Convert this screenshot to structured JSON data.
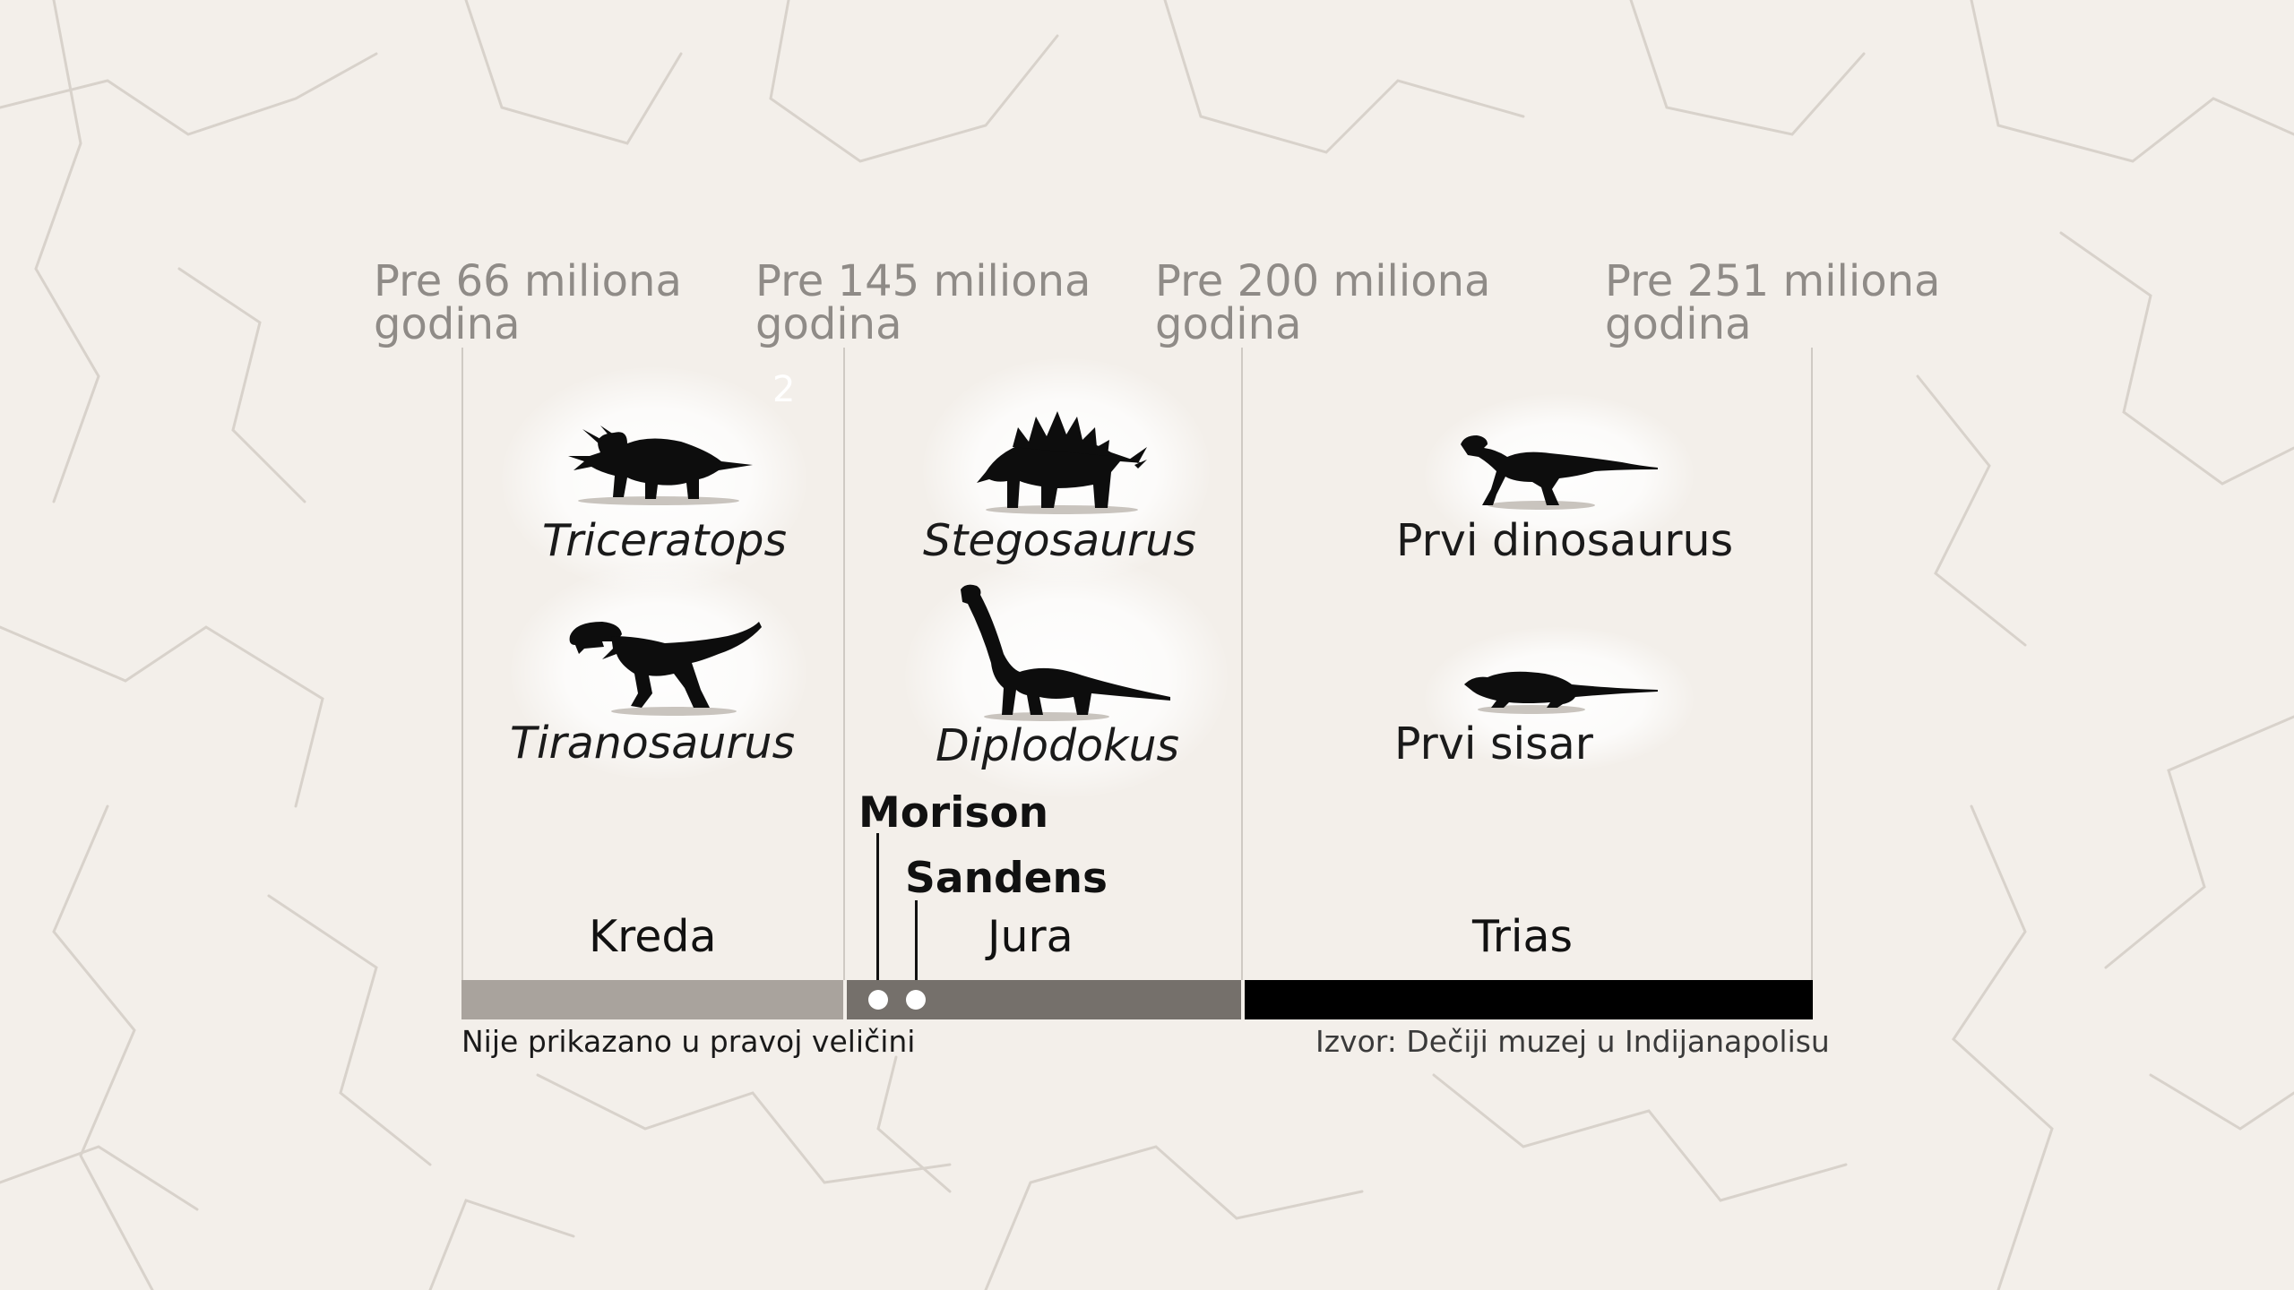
{
  "dates": [
    {
      "line1": "Pre 66 miliona",
      "line2": "godina"
    },
    {
      "line1": "Pre 145 miliona",
      "line2": "godina"
    },
    {
      "line1": "Pre 200 miliona",
      "line2": "godina"
    },
    {
      "line1": "Pre 251 miliona",
      "line2": "godina"
    }
  ],
  "watermark": "2",
  "animals": {
    "triceratops": "Triceratops",
    "tiranosaurus": "Tiranosaurus",
    "stegosaurus": "Stegosaurus",
    "diplodokus": "Diplodokus",
    "first_dinosaur": "Prvi dinosaurus",
    "first_mammal": "Prvi sisar"
  },
  "sites": {
    "morrison": "Morison",
    "sundance": "Sandens"
  },
  "periods": {
    "cretaceous": {
      "label": "Kreda",
      "color": "#a9a39d"
    },
    "jurassic": {
      "label": "Jura",
      "color": "#75706b"
    },
    "triassic": {
      "label": "Trias",
      "color": "#000000"
    }
  },
  "notes": {
    "scale": "Nije prikazano u pravoj veličini",
    "source": "Izvor: Dečiji muzej u Indijanapolisu"
  },
  "icons": [
    "triceratops-icon",
    "tyrannosaurus-icon",
    "stegosaurus-icon",
    "diplodocus-icon",
    "first-dinosaur-icon",
    "first-mammal-icon"
  ]
}
